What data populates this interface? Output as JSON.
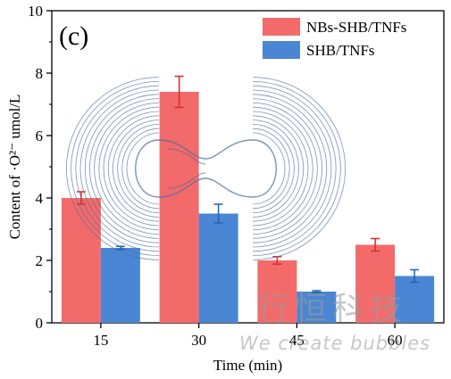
{
  "chart_data": {
    "type": "bar",
    "panel_label": "(c)",
    "xlabel": "Time (min)",
    "ylabel": "Content of ·O²⁻ umol/L",
    "categories": [
      "15",
      "30",
      "45",
      "60"
    ],
    "ylim": [
      0,
      10
    ],
    "yticks": [
      "0",
      "2",
      "4",
      "6",
      "8",
      "10"
    ],
    "legend_position": "top-right",
    "series": [
      {
        "name": "NBs-SHB/TNFs",
        "color": "#f36a6a",
        "values": [
          4.0,
          7.4,
          2.0,
          2.5
        ],
        "errors": [
          0.2,
          0.5,
          0.12,
          0.2
        ]
      },
      {
        "name": "SHB/TNFs",
        "color": "#4a86d4",
        "values": [
          2.4,
          3.5,
          1.0,
          1.5
        ],
        "errors": [
          0.05,
          0.3,
          0.03,
          0.2
        ]
      }
    ]
  },
  "watermark": {
    "chinese": "行恒科技",
    "english": "We create bubbles",
    "logo_color": "#4f6fa0"
  }
}
